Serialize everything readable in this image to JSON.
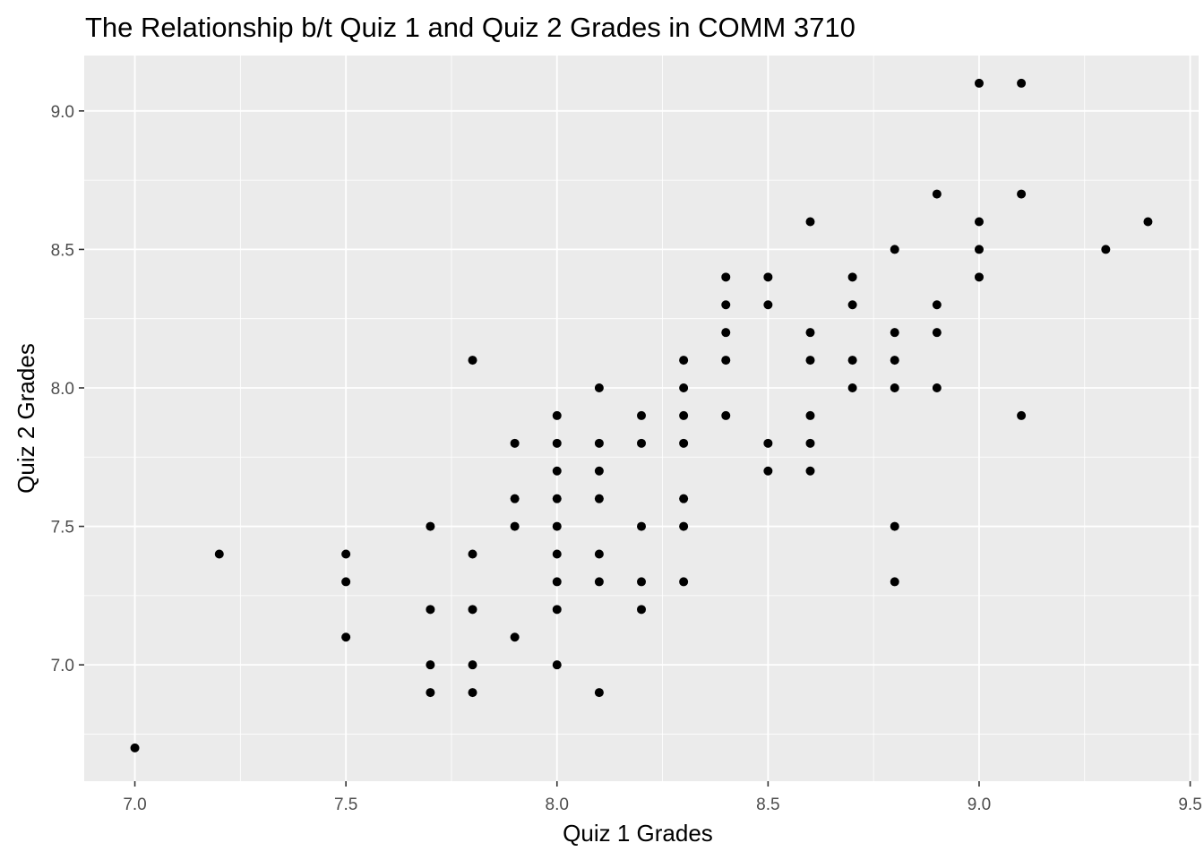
{
  "chart_data": {
    "type": "scatter",
    "title": "The Relationship b/t Quiz 1 and Quiz 2 Grades in COMM 3710",
    "xlabel": "Quiz 1 Grades",
    "ylabel": "Quiz 2 Grades",
    "xlim": [
      6.88,
      9.52
    ],
    "ylim": [
      6.58,
      9.2
    ],
    "x_ticks": [
      "7.0",
      "7.5",
      "8.0",
      "8.5",
      "9.0",
      "9.5"
    ],
    "y_ticks": [
      "7.0",
      "7.5",
      "8.0",
      "8.5",
      "9.0"
    ],
    "grid": true,
    "panel_background": "#ebebeb",
    "grid_color": "#ffffff",
    "point_color": "#000000",
    "points": [
      {
        "x": 7.0,
        "y": 6.7
      },
      {
        "x": 7.2,
        "y": 7.4
      },
      {
        "x": 7.5,
        "y": 7.4
      },
      {
        "x": 7.5,
        "y": 7.3
      },
      {
        "x": 7.5,
        "y": 7.1
      },
      {
        "x": 7.7,
        "y": 7.5
      },
      {
        "x": 7.7,
        "y": 7.2
      },
      {
        "x": 7.7,
        "y": 7.0
      },
      {
        "x": 7.7,
        "y": 6.9
      },
      {
        "x": 7.8,
        "y": 8.1
      },
      {
        "x": 7.8,
        "y": 7.4
      },
      {
        "x": 7.8,
        "y": 7.2
      },
      {
        "x": 7.8,
        "y": 7.0
      },
      {
        "x": 7.8,
        "y": 6.9
      },
      {
        "x": 7.9,
        "y": 7.8
      },
      {
        "x": 7.9,
        "y": 7.6
      },
      {
        "x": 7.9,
        "y": 7.5
      },
      {
        "x": 7.9,
        "y": 7.1
      },
      {
        "x": 8.0,
        "y": 7.9
      },
      {
        "x": 8.0,
        "y": 7.8
      },
      {
        "x": 8.0,
        "y": 7.7
      },
      {
        "x": 8.0,
        "y": 7.6
      },
      {
        "x": 8.0,
        "y": 7.5
      },
      {
        "x": 8.0,
        "y": 7.4
      },
      {
        "x": 8.0,
        "y": 7.3
      },
      {
        "x": 8.0,
        "y": 7.2
      },
      {
        "x": 8.0,
        "y": 7.0
      },
      {
        "x": 8.1,
        "y": 8.0
      },
      {
        "x": 8.1,
        "y": 7.8
      },
      {
        "x": 8.1,
        "y": 7.7
      },
      {
        "x": 8.1,
        "y": 7.6
      },
      {
        "x": 8.1,
        "y": 7.4
      },
      {
        "x": 8.1,
        "y": 7.3
      },
      {
        "x": 8.1,
        "y": 6.9
      },
      {
        "x": 8.2,
        "y": 7.9
      },
      {
        "x": 8.2,
        "y": 7.8
      },
      {
        "x": 8.2,
        "y": 7.5
      },
      {
        "x": 8.2,
        "y": 7.3
      },
      {
        "x": 8.2,
        "y": 7.2
      },
      {
        "x": 8.3,
        "y": 8.1
      },
      {
        "x": 8.3,
        "y": 8.0
      },
      {
        "x": 8.3,
        "y": 7.9
      },
      {
        "x": 8.3,
        "y": 7.8
      },
      {
        "x": 8.3,
        "y": 7.6
      },
      {
        "x": 8.3,
        "y": 7.5
      },
      {
        "x": 8.3,
        "y": 7.3
      },
      {
        "x": 8.4,
        "y": 8.4
      },
      {
        "x": 8.4,
        "y": 8.3
      },
      {
        "x": 8.4,
        "y": 8.2
      },
      {
        "x": 8.4,
        "y": 8.1
      },
      {
        "x": 8.4,
        "y": 7.9
      },
      {
        "x": 8.5,
        "y": 8.4
      },
      {
        "x": 8.5,
        "y": 8.3
      },
      {
        "x": 8.5,
        "y": 7.8
      },
      {
        "x": 8.5,
        "y": 7.7
      },
      {
        "x": 8.6,
        "y": 8.6
      },
      {
        "x": 8.6,
        "y": 8.2
      },
      {
        "x": 8.6,
        "y": 8.1
      },
      {
        "x": 8.6,
        "y": 7.9
      },
      {
        "x": 8.6,
        "y": 7.8
      },
      {
        "x": 8.6,
        "y": 7.7
      },
      {
        "x": 8.7,
        "y": 8.4
      },
      {
        "x": 8.7,
        "y": 8.3
      },
      {
        "x": 8.7,
        "y": 8.1
      },
      {
        "x": 8.7,
        "y": 8.0
      },
      {
        "x": 8.8,
        "y": 8.5
      },
      {
        "x": 8.8,
        "y": 8.2
      },
      {
        "x": 8.8,
        "y": 8.1
      },
      {
        "x": 8.8,
        "y": 8.0
      },
      {
        "x": 8.8,
        "y": 7.5
      },
      {
        "x": 8.8,
        "y": 7.3
      },
      {
        "x": 8.9,
        "y": 8.7
      },
      {
        "x": 8.9,
        "y": 8.3
      },
      {
        "x": 8.9,
        "y": 8.2
      },
      {
        "x": 8.9,
        "y": 8.0
      },
      {
        "x": 9.0,
        "y": 9.1
      },
      {
        "x": 9.0,
        "y": 8.6
      },
      {
        "x": 9.0,
        "y": 8.5
      },
      {
        "x": 9.0,
        "y": 8.4
      },
      {
        "x": 9.1,
        "y": 9.1
      },
      {
        "x": 9.1,
        "y": 8.7
      },
      {
        "x": 9.1,
        "y": 7.9
      },
      {
        "x": 9.3,
        "y": 8.5
      },
      {
        "x": 9.4,
        "y": 8.6
      }
    ]
  }
}
